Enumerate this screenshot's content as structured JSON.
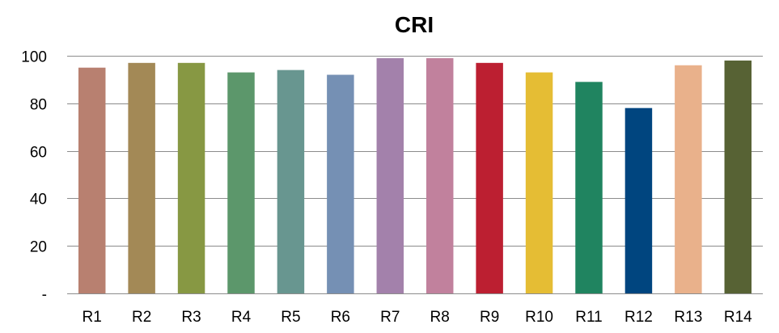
{
  "chart_data": {
    "type": "bar",
    "title": "CRI",
    "xlabel": "",
    "ylabel": "",
    "categories": [
      "R1",
      "R2",
      "R3",
      "R4",
      "R5",
      "R6",
      "R7",
      "R8",
      "R9",
      "R10",
      "R11",
      "R12",
      "R13",
      "R14"
    ],
    "values": [
      95,
      97,
      97,
      93,
      94,
      92,
      99,
      99,
      97,
      93,
      89,
      78,
      96,
      98
    ],
    "ylim": [
      0,
      100
    ],
    "yticks": [
      0,
      20,
      40,
      60,
      80,
      100
    ],
    "ytick_labels": [
      "-",
      "20",
      "40",
      "60",
      "80",
      "100"
    ],
    "grid": true,
    "legend": "none",
    "colors": [
      "#b88070",
      "#a38956",
      "#879843",
      "#5c976b",
      "#689690",
      "#7590b4",
      "#a381ab",
      "#c1819d",
      "#bc1f31",
      "#e5bd34",
      "#208460",
      "#00457f",
      "#e9b18b",
      "#576234"
    ]
  }
}
